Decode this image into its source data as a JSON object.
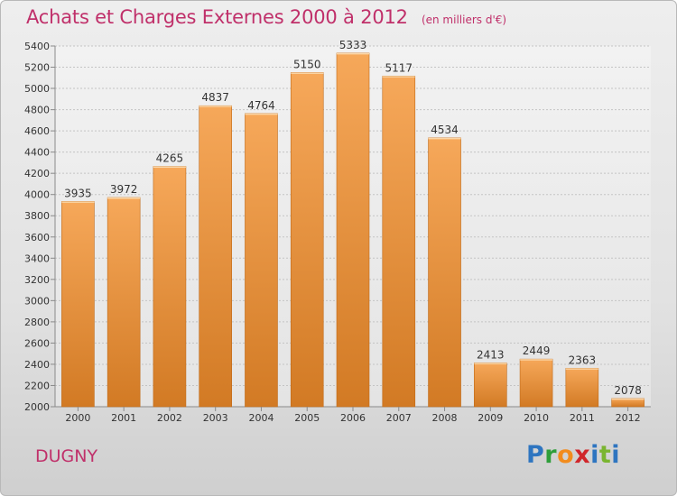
{
  "title": "Achats et Charges Externes 2000 à 2012",
  "subtitle": "(en milliers d'€)",
  "place": "DUGNY",
  "brand": {
    "letters": [
      "P",
      "r",
      "o",
      "x",
      "i",
      "t",
      "i"
    ],
    "colors": [
      "#2e75c0",
      "#2e9e3a",
      "#f28c1e",
      "#d0262b",
      "#2e75c0",
      "#7ab530",
      "#2e75c0"
    ]
  },
  "colors": {
    "bar_top": "#f6a85a",
    "bar_bottom": "#d27a24",
    "title": "#c0306a"
  },
  "chart_data": {
    "type": "bar",
    "categories": [
      "2000",
      "2001",
      "2002",
      "2003",
      "2004",
      "2005",
      "2006",
      "2007",
      "2008",
      "2009",
      "2010",
      "2011",
      "2012"
    ],
    "values": [
      3935,
      3972,
      4265,
      4837,
      4764,
      5150,
      5333,
      5117,
      4534,
      2413,
      2449,
      2363,
      2078
    ],
    "ylim": [
      2000,
      5400
    ],
    "yticks": [
      2000,
      2200,
      2400,
      2600,
      2800,
      3000,
      3200,
      3400,
      3600,
      3800,
      4000,
      4200,
      4400,
      4600,
      4800,
      5000,
      5200,
      5400
    ],
    "grid": true,
    "data_labels": true
  }
}
